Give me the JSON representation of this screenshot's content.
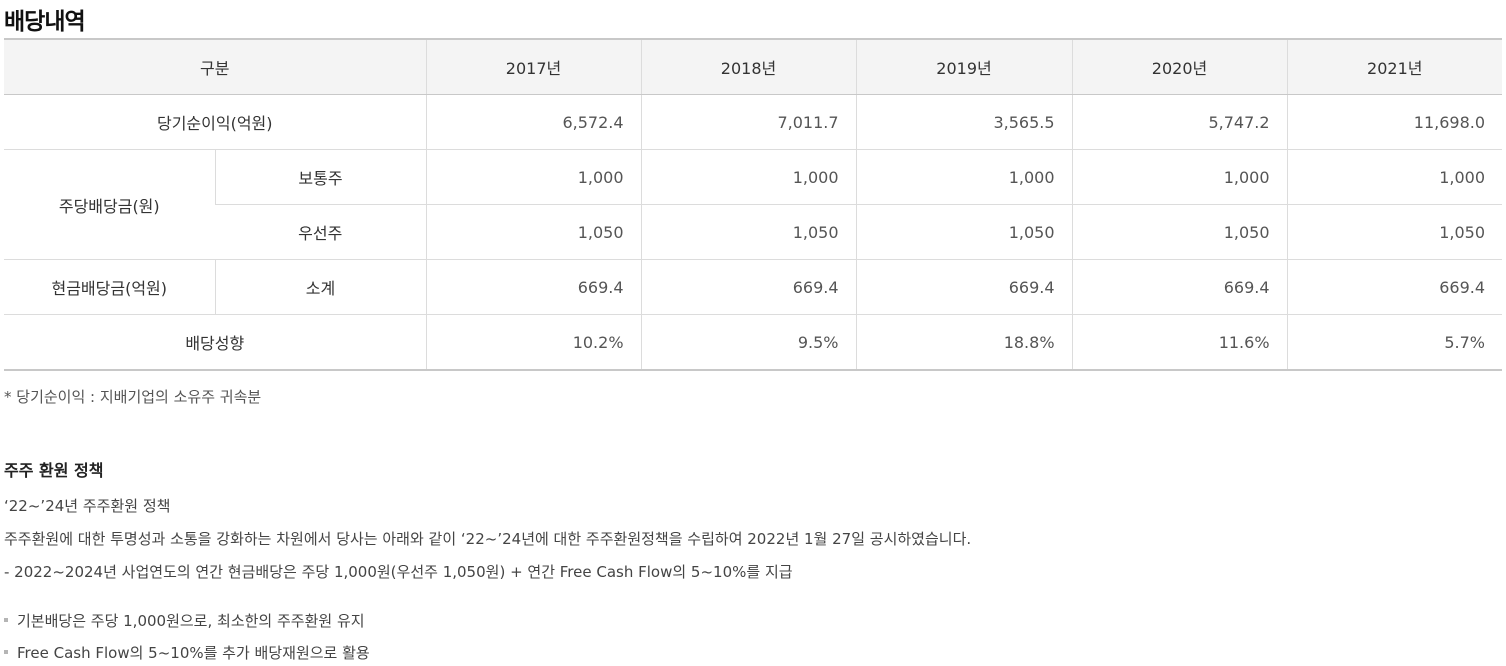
{
  "title": "배당내역",
  "table": {
    "header": {
      "category": "구분",
      "years": [
        "2017년",
        "2018년",
        "2019년",
        "2020년",
        "2021년"
      ]
    },
    "net_income": {
      "label": "당기순이익(억원)",
      "values": [
        "6,572.4",
        "7,011.7",
        "3,565.5",
        "5,747.2",
        "11,698.0"
      ]
    },
    "dps": {
      "label": "주당배당금(원)",
      "common": {
        "label": "보통주",
        "values": [
          "1,000",
          "1,000",
          "1,000",
          "1,000",
          "1,000"
        ]
      },
      "preferred": {
        "label": "우선주",
        "values": [
          "1,050",
          "1,050",
          "1,050",
          "1,050",
          "1,050"
        ]
      }
    },
    "cash_dividend": {
      "label": "현금배당금(억원)",
      "sub_label": "소계",
      "values": [
        "669.4",
        "669.4",
        "669.4",
        "669.4",
        "669.4"
      ]
    },
    "payout_ratio": {
      "label": "배당성향",
      "values": [
        "10.2%",
        "9.5%",
        "18.8%",
        "11.6%",
        "5.7%"
      ]
    }
  },
  "note": "* 당기순이익 : 지배기업의 소유주 귀속분",
  "policy": {
    "heading": "주주 환원 정책",
    "lines": [
      "‘22~’24년 주주환원 정책",
      "주주환원에 대한 투명성과 소통을 강화하는 차원에서 당사는 아래와 같이 ‘22~’24년에 대한 주주환원정책을 수립하여 2022년 1월 27일 공시하였습니다.",
      "- 2022~2024년 사업연도의 연간 현금배당은 주당 1,000원(우선주 1,050원) + 연간 Free Cash Flow의 5~10%를 지급"
    ],
    "bullets": [
      "기본배당은 주당 1,000원으로, 최소한의 주주환원 유지",
      "Free Cash Flow의 5~10%를 추가 배당재원으로 활용"
    ]
  }
}
